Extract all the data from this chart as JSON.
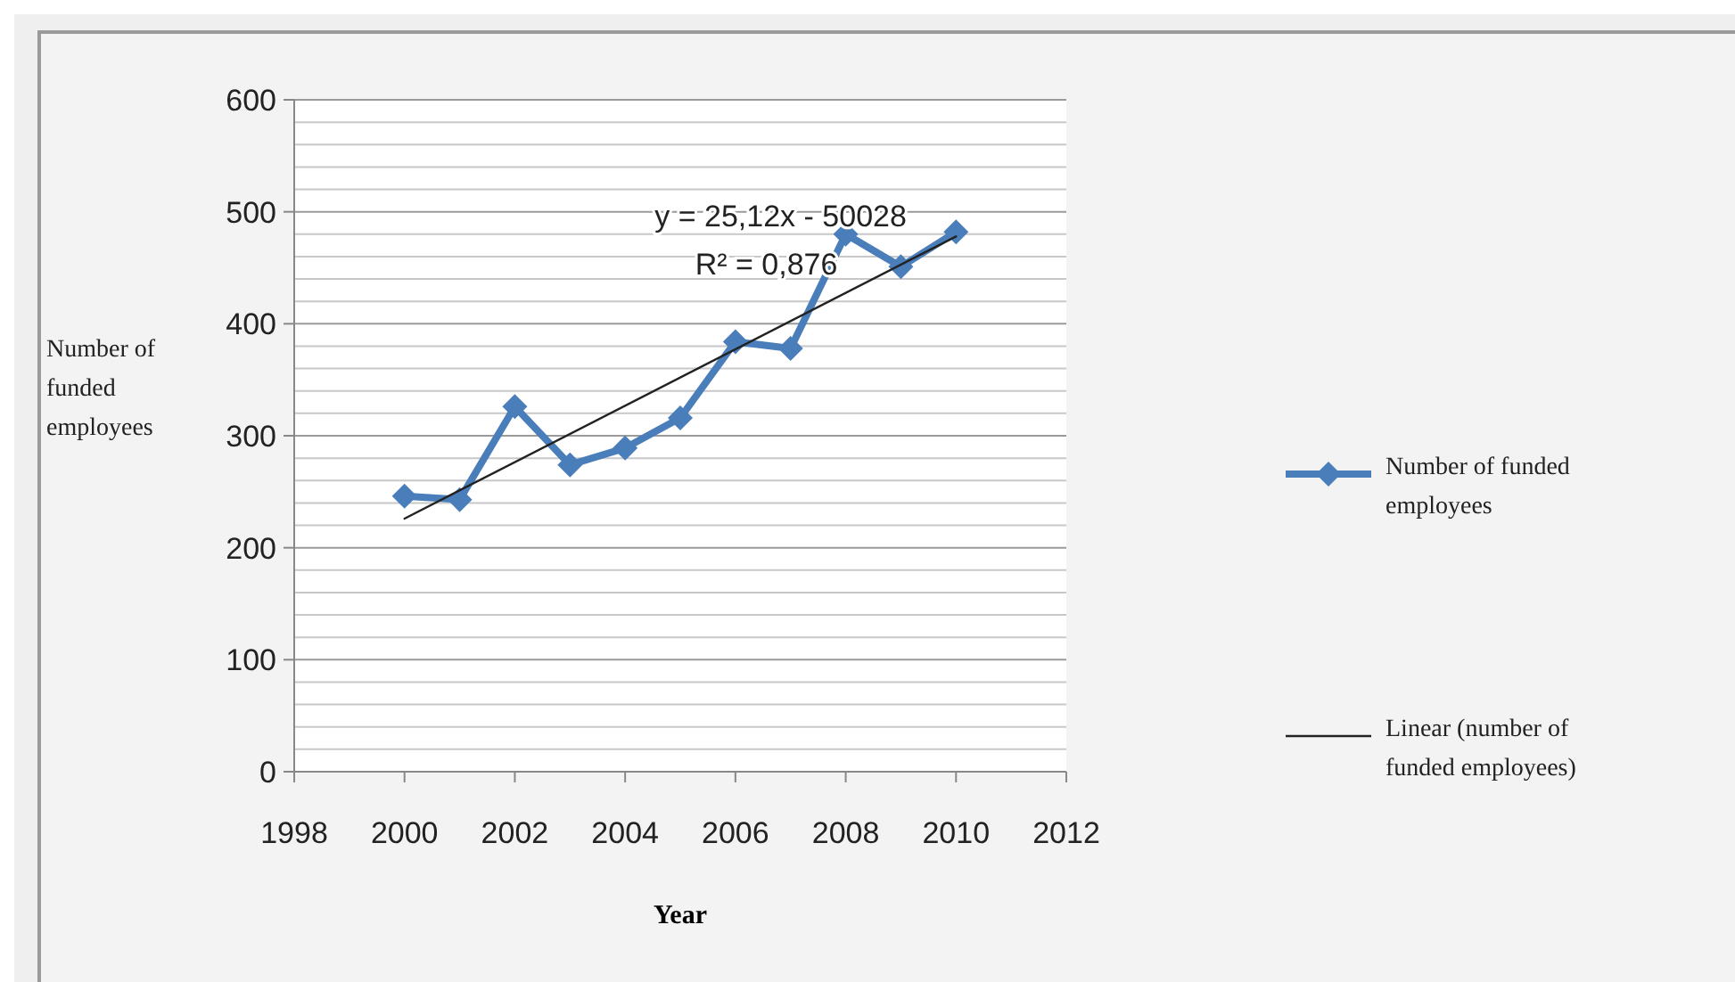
{
  "chart_data": {
    "type": "line",
    "xlabel": "Year",
    "ylabel": "Number of funded employees",
    "x": [
      2000,
      2001,
      2002,
      2003,
      2004,
      2005,
      2006,
      2007,
      2008,
      2009,
      2010
    ],
    "series": [
      {
        "name": "Number of funded employees",
        "color": "#4a7ebb",
        "marker": "diamond",
        "values": [
          246,
          243,
          326,
          274,
          289,
          316,
          384,
          378,
          480,
          451,
          482
        ]
      },
      {
        "name": "Linear (number of funded employees)",
        "color": "#222222",
        "marker": "none",
        "x": [
          2000,
          2010
        ],
        "values": [
          226,
          478
        ]
      }
    ],
    "xlim": [
      1998,
      2012
    ],
    "xticks": [
      1998,
      2000,
      2002,
      2004,
      2006,
      2008,
      2010,
      2012
    ],
    "ylim": [
      0,
      600
    ],
    "yticks": [
      0,
      {
        "value": 20,
        "label": null
      },
      {
        "value": 40,
        "label": null
      },
      {
        "value": 60,
        "label": null
      },
      {
        "value": 80,
        "label": null
      },
      100,
      {
        "value": 120,
        "label": null
      },
      {
        "value": 140,
        "label": null
      },
      {
        "value": 160,
        "label": null
      },
      {
        "value": 180,
        "label": null
      },
      200,
      {
        "value": 220,
        "label": null
      },
      {
        "value": 240,
        "label": null
      },
      {
        "value": 260,
        "label": null
      },
      {
        "value": 280,
        "label": null
      },
      300,
      {
        "value": 320,
        "label": null
      },
      {
        "value": 340,
        "label": null
      },
      {
        "value": 360,
        "label": null
      },
      {
        "value": 380,
        "label": null
      },
      400,
      {
        "value": 420,
        "label": null
      },
      {
        "value": 440,
        "label": null
      },
      {
        "value": 460,
        "label": null
      },
      {
        "value": 480,
        "label": null
      },
      500,
      {
        "value": 520,
        "label": null
      },
      {
        "value": 540,
        "label": null
      },
      {
        "value": 560,
        "label": null
      },
      {
        "value": 580,
        "label": null
      },
      600
    ],
    "grid": "y",
    "legend": "right",
    "annotations": [
      "y = 25,12x - 50028",
      "R² = 0,876"
    ]
  }
}
